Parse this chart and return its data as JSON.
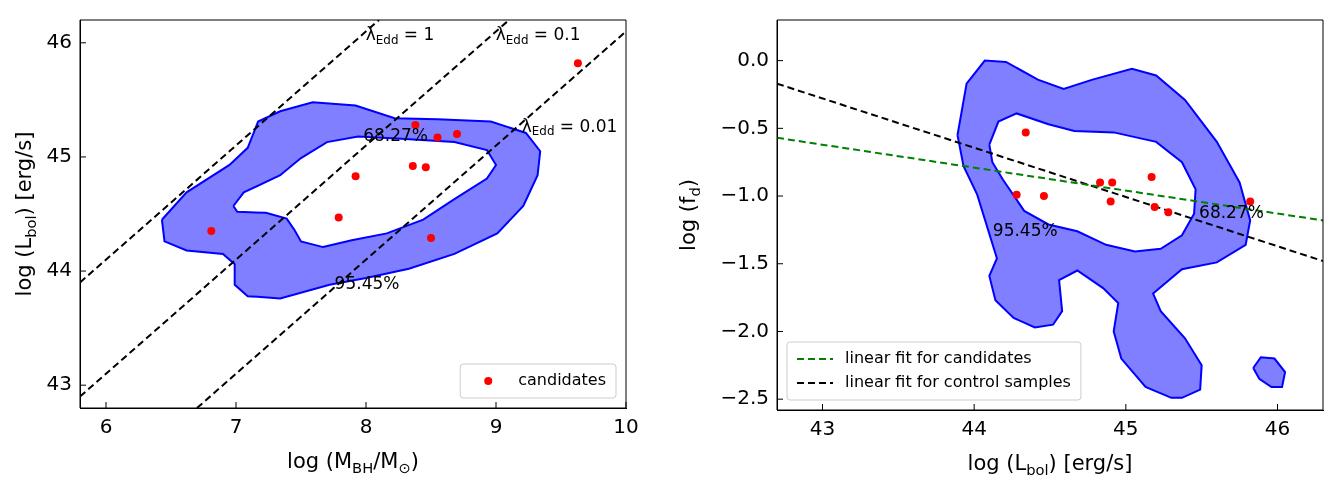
{
  "chart_data": [
    {
      "type": "scatter",
      "xlabel": "log (M$_{BH}$/M$_{⊙}$)",
      "ylabel": "log (L$_{bol}$) [erg/s]",
      "xlim": [
        5.8,
        10
      ],
      "ylim": [
        42.8,
        46.2
      ],
      "xticks": [
        6,
        7,
        8,
        9,
        10
      ],
      "yticks": [
        43,
        44,
        45,
        46
      ],
      "grid": false,
      "legend": "bottom right",
      "series": [
        {
          "type": "area",
          "color": "#0000ff",
          "x": [
            6.43,
            6.62,
            6.95,
            7.09,
            7.17,
            7.34,
            7.59,
            7.92,
            8.22,
            8.55,
            8.96,
            9.23,
            9.34,
            9.32,
            9.21,
            9.01,
            8.68,
            8.33,
            8.0,
            7.72,
            7.34,
            7.09,
            6.99,
            6.99,
            6.9,
            6.62,
            6.45
          ],
          "values": [
            44.45,
            44.69,
            44.93,
            45.08,
            45.31,
            45.4,
            45.48,
            45.45,
            45.34,
            45.33,
            45.31,
            45.21,
            45.05,
            44.84,
            44.57,
            44.33,
            44.15,
            44.02,
            43.94,
            43.88,
            43.76,
            43.78,
            43.88,
            44.06,
            44.15,
            44.18,
            44.26
          ]
        },
        {
          "type": "area",
          "color": "#0000ff",
          "x": [
            6.98,
            7.06,
            7.34,
            7.5,
            7.7,
            7.94,
            8.27,
            8.68,
            8.93,
            9.0,
            8.93,
            8.68,
            8.44,
            8.16,
            7.89,
            7.67,
            7.5,
            7.45,
            7.39,
            7.23,
            7.01
          ],
          "values": [
            44.57,
            44.69,
            44.84,
            44.99,
            45.13,
            45.18,
            45.16,
            45.13,
            45.06,
            44.93,
            44.81,
            44.63,
            44.45,
            44.33,
            44.27,
            44.21,
            44.26,
            44.36,
            44.46,
            44.51,
            44.52
          ]
        },
        {
          "type": "line",
          "color": "#000000",
          "line_style": "dashed",
          "x": [
            5.8,
            8.1
          ],
          "values": [
            43.9,
            46.2
          ]
        },
        {
          "type": "line",
          "color": "#000000",
          "line_style": "dashed",
          "x": [
            5.8,
            9.1
          ],
          "values": [
            42.9,
            46.2
          ]
        },
        {
          "type": "line",
          "color": "#000000",
          "line_style": "dashed",
          "x": [
            6.7,
            10
          ],
          "values": [
            42.8,
            46.1
          ]
        },
        {
          "name": "candidates",
          "color": "#ff0000",
          "marker": "circle",
          "x": [
            6.81,
            7.92,
            7.79,
            8.38,
            8.55,
            8.7,
            8.36,
            8.46,
            8.5,
            9.63
          ],
          "values": [
            44.35,
            44.83,
            44.47,
            45.28,
            45.17,
            45.2,
            44.92,
            44.91,
            44.29,
            45.82
          ]
        }
      ],
      "annotations": [
        {
          "text": "λ$_{Edd}$ = 1",
          "x": 7.96,
          "y": 46.06
        },
        {
          "text": "λ$_{Edd}$ = 0.1",
          "x": 8.96,
          "y": 46.06
        },
        {
          "text": "λ$_{Edd}$ = 0.01",
          "x": 9.16,
          "y": 45.26
        },
        {
          "text": "68.27%",
          "x": 7.94,
          "y": 45.18
        },
        {
          "text": "95.45%",
          "x": 7.72,
          "y": 43.88
        }
      ]
    },
    {
      "type": "scatter",
      "xlabel": "log (L$_{bol}$) [erg/s]",
      "ylabel": "log (f$_{d}$)",
      "xlim": [
        42.7,
        46.3
      ],
      "ylim": [
        -2.58,
        0.3
      ],
      "xticks": [
        43,
        44,
        45,
        46
      ],
      "yticks": [
        {
          "value": 0,
          "label": "0.0"
        },
        {
          "value": -0.5,
          "label": "−0.5"
        },
        {
          "value": -1,
          "label": "−1.0"
        },
        {
          "value": -1.5,
          "label": "−1.5"
        },
        {
          "value": -2,
          "label": "−2.0"
        },
        {
          "value": -2.5,
          "label": "−2.5"
        }
      ],
      "grid": false,
      "legend": "bottom left",
      "series": [
        {
          "type": "area",
          "color": "#0000ff",
          "x": [
            43.89,
            43.95,
            44.07,
            44.21,
            44.42,
            44.59,
            44.78,
            45.04,
            45.2,
            45.39,
            45.6,
            45.75,
            45.82,
            45.79,
            45.6,
            45.37,
            45.18,
            45.23,
            45.39,
            45.5,
            45.49,
            45.37,
            45.3,
            45.13,
            44.97,
            44.92,
            44.95,
            44.85,
            44.68,
            44.56,
            44.58,
            44.52,
            44.4,
            44.26,
            44.14,
            44.1,
            44.15,
            44.02,
            43.93
          ],
          "values": [
            -0.55,
            -0.17,
            0.0,
            -0.01,
            -0.14,
            -0.21,
            -0.14,
            -0.06,
            -0.11,
            -0.29,
            -0.6,
            -0.9,
            -1.18,
            -1.36,
            -1.49,
            -1.54,
            -1.72,
            -1.85,
            -2.05,
            -2.25,
            -2.43,
            -2.49,
            -2.49,
            -2.41,
            -2.2,
            -2.0,
            -1.79,
            -1.68,
            -1.55,
            -1.62,
            -1.85,
            -1.95,
            -1.97,
            -1.9,
            -1.77,
            -1.59,
            -1.46,
            -0.99,
            -0.78
          ]
        },
        {
          "type": "area",
          "color": "#0000ff",
          "x": [
            44.1,
            44.16,
            44.28,
            44.49,
            44.66,
            44.92,
            45.2,
            45.37,
            45.46,
            45.45,
            45.37,
            45.23,
            45.06,
            44.87,
            44.68,
            44.49,
            44.33,
            44.19,
            44.12
          ],
          "values": [
            -0.62,
            -0.45,
            -0.39,
            -0.47,
            -0.52,
            -0.53,
            -0.6,
            -0.75,
            -0.95,
            -1.13,
            -1.29,
            -1.39,
            -1.41,
            -1.36,
            -1.26,
            -1.21,
            -1.11,
            -0.88,
            -0.75
          ]
        },
        {
          "type": "area",
          "color": "#0000ff",
          "x": [
            45.84,
            45.89,
            45.98,
            46.05,
            46.03,
            45.96,
            45.88
          ],
          "values": [
            -2.27,
            -2.19,
            -2.2,
            -2.3,
            -2.41,
            -2.41,
            -2.35
          ]
        },
        {
          "type": "line",
          "name": "linear fit for candidates",
          "color": "#008000",
          "line_style": "dashed",
          "x": [
            42.7,
            46.3
          ],
          "values": [
            -0.57,
            -1.18
          ]
        },
        {
          "type": "line",
          "name": "linear fit for control samples",
          "color": "#000000",
          "line_style": "dashed",
          "x": [
            42.7,
            46.3
          ],
          "values": [
            -0.17,
            -1.48
          ]
        },
        {
          "color": "#ff0000",
          "marker": "circle",
          "x": [
            44.34,
            44.28,
            44.46,
            44.83,
            44.91,
            45.17,
            44.9,
            45.19,
            45.28,
            45.82
          ],
          "values": [
            -0.53,
            -0.99,
            -1.0,
            -0.9,
            -0.9,
            -0.86,
            -1.04,
            -1.08,
            -1.12,
            -1.04
          ]
        }
      ],
      "annotations": [
        {
          "text": "95.45%",
          "x": 44.09,
          "y": -1.26
        },
        {
          "text": "68.27%",
          "x": 45.45,
          "y": -1.13
        }
      ]
    }
  ]
}
